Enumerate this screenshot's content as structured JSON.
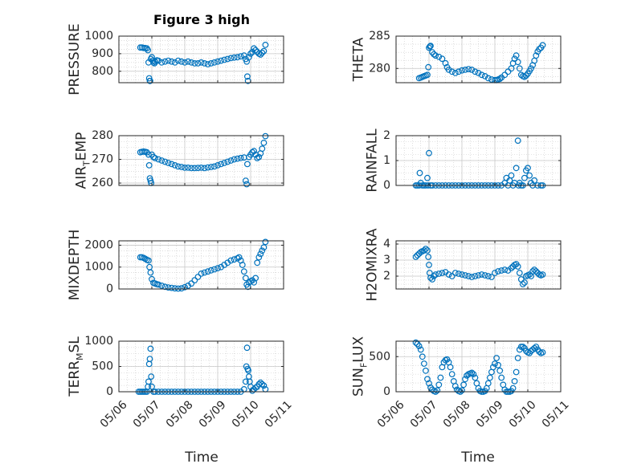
{
  "title": "Figure 3 high",
  "colors": {
    "marker": "#0072bd",
    "axes": "#262626",
    "grid": "#c8c8c8",
    "background": "#ffffff"
  },
  "chart_data": [
    {
      "type": "scatter",
      "ylabel": "PRESSURE",
      "ylim": [
        735,
        1000
      ],
      "yticks": [
        800,
        900,
        1000
      ],
      "x": [
        6.65,
        6.7,
        6.75,
        6.8,
        6.85,
        6.88,
        6.9,
        6.92,
        6.94,
        6.95,
        6.97,
        7.0,
        7.03,
        7.05,
        7.08,
        7.1,
        7.15,
        7.2,
        7.3,
        7.4,
        7.5,
        7.6,
        7.7,
        7.8,
        7.9,
        8.0,
        8.1,
        8.2,
        8.3,
        8.4,
        8.5,
        8.6,
        8.7,
        8.8,
        8.9,
        9.0,
        9.1,
        9.2,
        9.3,
        9.4,
        9.5,
        9.6,
        9.7,
        9.8,
        9.85,
        9.88,
        9.9,
        9.92,
        9.95,
        10.0,
        10.05,
        10.1,
        10.15,
        10.2,
        10.25,
        10.3,
        10.35,
        10.4,
        10.45
      ],
      "y": [
        935,
        935,
        933,
        932,
        930,
        920,
        850,
        760,
        745,
        745,
        870,
        880,
        860,
        850,
        845,
        855,
        862,
        860,
        850,
        855,
        860,
        855,
        850,
        860,
        855,
        850,
        855,
        850,
        845,
        845,
        850,
        845,
        840,
        845,
        850,
        855,
        860,
        865,
        870,
        875,
        878,
        880,
        885,
        890,
        870,
        855,
        770,
        745,
        880,
        900,
        910,
        930,
        920,
        910,
        900,
        895,
        905,
        915,
        950
      ],
      "x_ticklabels": [
        "05/06",
        "05/07",
        "05/08",
        "05/09",
        "05/10",
        "05/11"
      ]
    },
    {
      "type": "scatter",
      "ylabel": "THETA",
      "ylim": [
        277.8,
        285
      ],
      "yticks": [
        280,
        285
      ],
      "x": [
        6.7,
        6.75,
        6.8,
        6.85,
        6.9,
        6.95,
        6.98,
        7.0,
        7.03,
        7.05,
        7.1,
        7.15,
        7.2,
        7.3,
        7.4,
        7.5,
        7.55,
        7.6,
        7.7,
        7.8,
        7.9,
        8.0,
        8.1,
        8.2,
        8.3,
        8.4,
        8.5,
        8.6,
        8.7,
        8.8,
        8.9,
        9.0,
        9.05,
        9.1,
        9.15,
        9.2,
        9.3,
        9.4,
        9.5,
        9.55,
        9.6,
        9.65,
        9.7,
        9.75,
        9.8,
        9.85,
        9.9,
        9.95,
        10.0,
        10.05,
        10.1,
        10.15,
        10.2,
        10.25,
        10.3,
        10.35,
        10.4,
        10.45
      ],
      "y": [
        278.5,
        278.6,
        278.7,
        278.8,
        278.9,
        279.0,
        280.2,
        283.2,
        283.4,
        283.5,
        282.5,
        282.2,
        282.0,
        281.8,
        281.5,
        280.8,
        280.2,
        279.8,
        279.5,
        279.3,
        279.5,
        279.7,
        279.8,
        279.9,
        279.8,
        279.5,
        279.3,
        279.0,
        278.8,
        278.5,
        278.3,
        278.2,
        278.2,
        278.3,
        278.4,
        278.6,
        279.0,
        279.5,
        280.0,
        280.8,
        281.5,
        282.0,
        281.0,
        280.0,
        279.0,
        278.8,
        278.7,
        278.9,
        279.2,
        279.6,
        280.0,
        280.5,
        281.2,
        282.0,
        282.6,
        283.0,
        283.2,
        283.6
      ]
    },
    {
      "type": "scatter",
      "ylabel": "AIR_TEMP",
      "ylim": [
        259,
        280
      ],
      "yticks": [
        260,
        270,
        280
      ],
      "x": [
        6.65,
        6.7,
        6.75,
        6.8,
        6.85,
        6.9,
        6.92,
        6.94,
        6.96,
        6.98,
        7.0,
        7.05,
        7.1,
        7.2,
        7.3,
        7.4,
        7.5,
        7.6,
        7.7,
        7.8,
        7.9,
        8.0,
        8.1,
        8.2,
        8.3,
        8.4,
        8.5,
        8.6,
        8.7,
        8.8,
        8.9,
        9.0,
        9.1,
        9.2,
        9.3,
        9.4,
        9.5,
        9.6,
        9.7,
        9.8,
        9.85,
        9.88,
        9.9,
        9.95,
        10.0,
        10.05,
        10.1,
        10.15,
        10.2,
        10.25,
        10.3,
        10.35,
        10.4,
        10.45
      ],
      "y": [
        273,
        273.2,
        273.3,
        273.2,
        273,
        272,
        267.5,
        262,
        261,
        260,
        272,
        271,
        270.5,
        270,
        269.5,
        269,
        268.5,
        268,
        267.5,
        267,
        266.8,
        266.5,
        266.5,
        266.3,
        266.3,
        266.4,
        266.5,
        266.3,
        266.6,
        266.8,
        267,
        267.5,
        268,
        268.5,
        269,
        269.5,
        270,
        270.3,
        270.6,
        270.8,
        261,
        259.5,
        268,
        271,
        272,
        273,
        273.5,
        272,
        270.5,
        271,
        272.5,
        274.5,
        277,
        279.8
      ]
    },
    {
      "type": "scatter",
      "ylabel": "RAINFALL",
      "ylim": [
        0,
        2
      ],
      "yticks": [
        0,
        1,
        2
      ],
      "x": [
        6.6,
        6.65,
        6.7,
        6.72,
        6.75,
        6.8,
        6.85,
        6.9,
        6.95,
        6.97,
        7.0,
        7.05,
        7.1,
        7.2,
        7.3,
        7.4,
        7.5,
        7.6,
        7.7,
        7.8,
        7.9,
        8.0,
        8.1,
        8.2,
        8.3,
        8.4,
        8.5,
        8.6,
        8.7,
        8.8,
        8.9,
        9.0,
        9.1,
        9.2,
        9.3,
        9.35,
        9.4,
        9.45,
        9.5,
        9.55,
        9.6,
        9.65,
        9.7,
        9.72,
        9.75,
        9.8,
        9.85,
        9.9,
        9.95,
        10.0,
        10.05,
        10.1,
        10.15,
        10.2,
        10.3,
        10.4,
        10.45
      ],
      "y": [
        0,
        0,
        0,
        0.5,
        0.1,
        0,
        0,
        0,
        0.3,
        0,
        1.3,
        0,
        0,
        0,
        0,
        0,
        0,
        0,
        0,
        0,
        0,
        0,
        0,
        0,
        0,
        0,
        0,
        0,
        0,
        0,
        0,
        0,
        0,
        0,
        0.1,
        0.3,
        0,
        0.2,
        0.4,
        0,
        0.1,
        0.7,
        1.8,
        0,
        0.1,
        0,
        0,
        0.3,
        0.6,
        0.7,
        0.4,
        0.1,
        0,
        0.2,
        0,
        0,
        0
      ]
    },
    {
      "type": "scatter",
      "ylabel": "MIXDEPTH",
      "ylim": [
        0,
        2200
      ],
      "yticks": [
        0,
        1000,
        2000
      ],
      "x": [
        6.65,
        6.7,
        6.75,
        6.8,
        6.85,
        6.9,
        6.93,
        6.96,
        7.0,
        7.05,
        7.1,
        7.15,
        7.2,
        7.3,
        7.4,
        7.5,
        7.6,
        7.7,
        7.8,
        7.9,
        8.0,
        8.1,
        8.2,
        8.3,
        8.4,
        8.5,
        8.6,
        8.7,
        8.8,
        8.9,
        9.0,
        9.1,
        9.2,
        9.3,
        9.4,
        9.5,
        9.6,
        9.65,
        9.7,
        9.75,
        9.8,
        9.85,
        9.88,
        9.92,
        9.95,
        10.0,
        10.05,
        10.1,
        10.15,
        10.2,
        10.25,
        10.3,
        10.35,
        10.4,
        10.45
      ],
      "y": [
        1450,
        1450,
        1420,
        1380,
        1330,
        1300,
        1000,
        750,
        450,
        280,
        250,
        220,
        200,
        150,
        100,
        70,
        50,
        30,
        20,
        30,
        80,
        150,
        250,
        400,
        550,
        700,
        750,
        800,
        850,
        900,
        950,
        1000,
        1100,
        1200,
        1300,
        1350,
        1400,
        1450,
        1300,
        1100,
        800,
        500,
        200,
        100,
        300,
        350,
        400,
        300,
        500,
        1200,
        1450,
        1600,
        1750,
        1900,
        2150
      ]
    },
    {
      "type": "scatter",
      "ylabel": "H2OMIXRA",
      "ylim": [
        1.2,
        4.2
      ],
      "yticks": [
        2,
        3,
        4
      ],
      "x": [
        6.6,
        6.65,
        6.7,
        6.75,
        6.8,
        6.85,
        6.9,
        6.95,
        6.98,
        7.0,
        7.02,
        7.05,
        7.1,
        7.15,
        7.2,
        7.3,
        7.4,
        7.5,
        7.6,
        7.7,
        7.8,
        7.9,
        8.0,
        8.1,
        8.2,
        8.3,
        8.4,
        8.5,
        8.6,
        8.7,
        8.8,
        8.9,
        9.0,
        9.1,
        9.2,
        9.3,
        9.4,
        9.5,
        9.55,
        9.6,
        9.65,
        9.7,
        9.75,
        9.8,
        9.85,
        9.9,
        9.95,
        10.0,
        10.05,
        10.1,
        10.15,
        10.2,
        10.25,
        10.3,
        10.35,
        10.4,
        10.45
      ],
      "y": [
        3.2,
        3.3,
        3.4,
        3.5,
        3.55,
        3.6,
        3.7,
        3.6,
        3.2,
        2.7,
        2.2,
        1.9,
        1.8,
        2.0,
        2.1,
        2.15,
        2.2,
        2.25,
        2.1,
        2.0,
        2.2,
        2.15,
        2.1,
        2.05,
        2.0,
        1.95,
        2.0,
        2.05,
        2.1,
        2.05,
        2.0,
        1.95,
        2.2,
        2.3,
        2.35,
        2.4,
        2.35,
        2.5,
        2.6,
        2.7,
        2.75,
        2.6,
        2.2,
        1.8,
        1.5,
        1.6,
        2.0,
        2.05,
        2.1,
        2.0,
        2.3,
        2.4,
        2.3,
        2.2,
        2.1,
        2.05,
        2.1
      ]
    },
    {
      "type": "scatter",
      "ylabel": "TERR_MSL",
      "ylim": [
        0,
        1000
      ],
      "yticks": [
        0,
        500,
        1000
      ],
      "x": [
        6.6,
        6.65,
        6.7,
        6.75,
        6.8,
        6.85,
        6.88,
        6.9,
        6.92,
        6.94,
        6.96,
        6.98,
        7.0,
        7.05,
        7.1,
        7.2,
        7.3,
        7.4,
        7.5,
        7.6,
        7.7,
        7.8,
        7.9,
        8.0,
        8.1,
        8.2,
        8.3,
        8.4,
        8.5,
        8.6,
        8.7,
        8.8,
        8.9,
        9.0,
        9.1,
        9.2,
        9.3,
        9.4,
        9.5,
        9.6,
        9.7,
        9.8,
        9.85,
        9.87,
        9.89,
        9.91,
        9.93,
        9.95,
        9.97,
        10.0,
        10.05,
        10.1,
        10.15,
        10.2,
        10.25,
        10.3,
        10.35,
        10.4,
        10.45
      ],
      "y": [
        0,
        0,
        0,
        0,
        0,
        0,
        100,
        200,
        550,
        650,
        850,
        300,
        100,
        0,
        0,
        0,
        0,
        0,
        0,
        0,
        0,
        0,
        0,
        0,
        0,
        0,
        0,
        0,
        0,
        0,
        0,
        0,
        0,
        0,
        0,
        0,
        0,
        0,
        0,
        0,
        0,
        50,
        200,
        500,
        870,
        450,
        420,
        300,
        200,
        100,
        20,
        50,
        80,
        100,
        150,
        180,
        150,
        120,
        50
      ]
    },
    {
      "type": "scatter",
      "ylabel": "SUN_FLUX",
      "ylim": [
        0,
        720
      ],
      "yticks": [
        0,
        500
      ],
      "x": [
        6.6,
        6.65,
        6.7,
        6.75,
        6.8,
        6.85,
        6.9,
        6.95,
        7.0,
        7.05,
        7.1,
        7.15,
        7.2,
        7.25,
        7.3,
        7.35,
        7.4,
        7.45,
        7.5,
        7.55,
        7.6,
        7.65,
        7.7,
        7.75,
        7.8,
        7.85,
        7.9,
        7.95,
        8.0,
        8.05,
        8.1,
        8.15,
        8.2,
        8.25,
        8.3,
        8.35,
        8.4,
        8.45,
        8.5,
        8.55,
        8.6,
        8.65,
        8.7,
        8.75,
        8.8,
        8.85,
        8.9,
        8.95,
        9.0,
        9.05,
        9.1,
        9.15,
        9.2,
        9.25,
        9.3,
        9.35,
        9.4,
        9.45,
        9.5,
        9.55,
        9.6,
        9.65,
        9.7,
        9.75,
        9.8,
        9.85,
        9.9,
        9.95,
        10.0,
        10.05,
        10.1,
        10.15,
        10.2,
        10.25,
        10.3,
        10.35,
        10.4,
        10.45
      ],
      "y": [
        700,
        680,
        650,
        600,
        500,
        400,
        300,
        180,
        120,
        60,
        30,
        10,
        0,
        20,
        100,
        200,
        350,
        420,
        450,
        460,
        420,
        350,
        250,
        150,
        80,
        30,
        10,
        0,
        20,
        100,
        180,
        230,
        250,
        260,
        270,
        250,
        200,
        120,
        50,
        10,
        0,
        0,
        10,
        50,
        120,
        200,
        280,
        350,
        400,
        480,
        380,
        300,
        200,
        100,
        30,
        0,
        0,
        0,
        10,
        50,
        150,
        280,
        480,
        600,
        640,
        640,
        620,
        580,
        560,
        550,
        580,
        600,
        620,
        640,
        600,
        570,
        550,
        560
      ]
    }
  ],
  "x_axis": {
    "label": "Time",
    "ticklabels": [
      "05/06",
      "05/07",
      "05/08",
      "05/09",
      "05/10",
      "05/11"
    ],
    "ticks": [
      6,
      7,
      8,
      9,
      10,
      11
    ]
  }
}
